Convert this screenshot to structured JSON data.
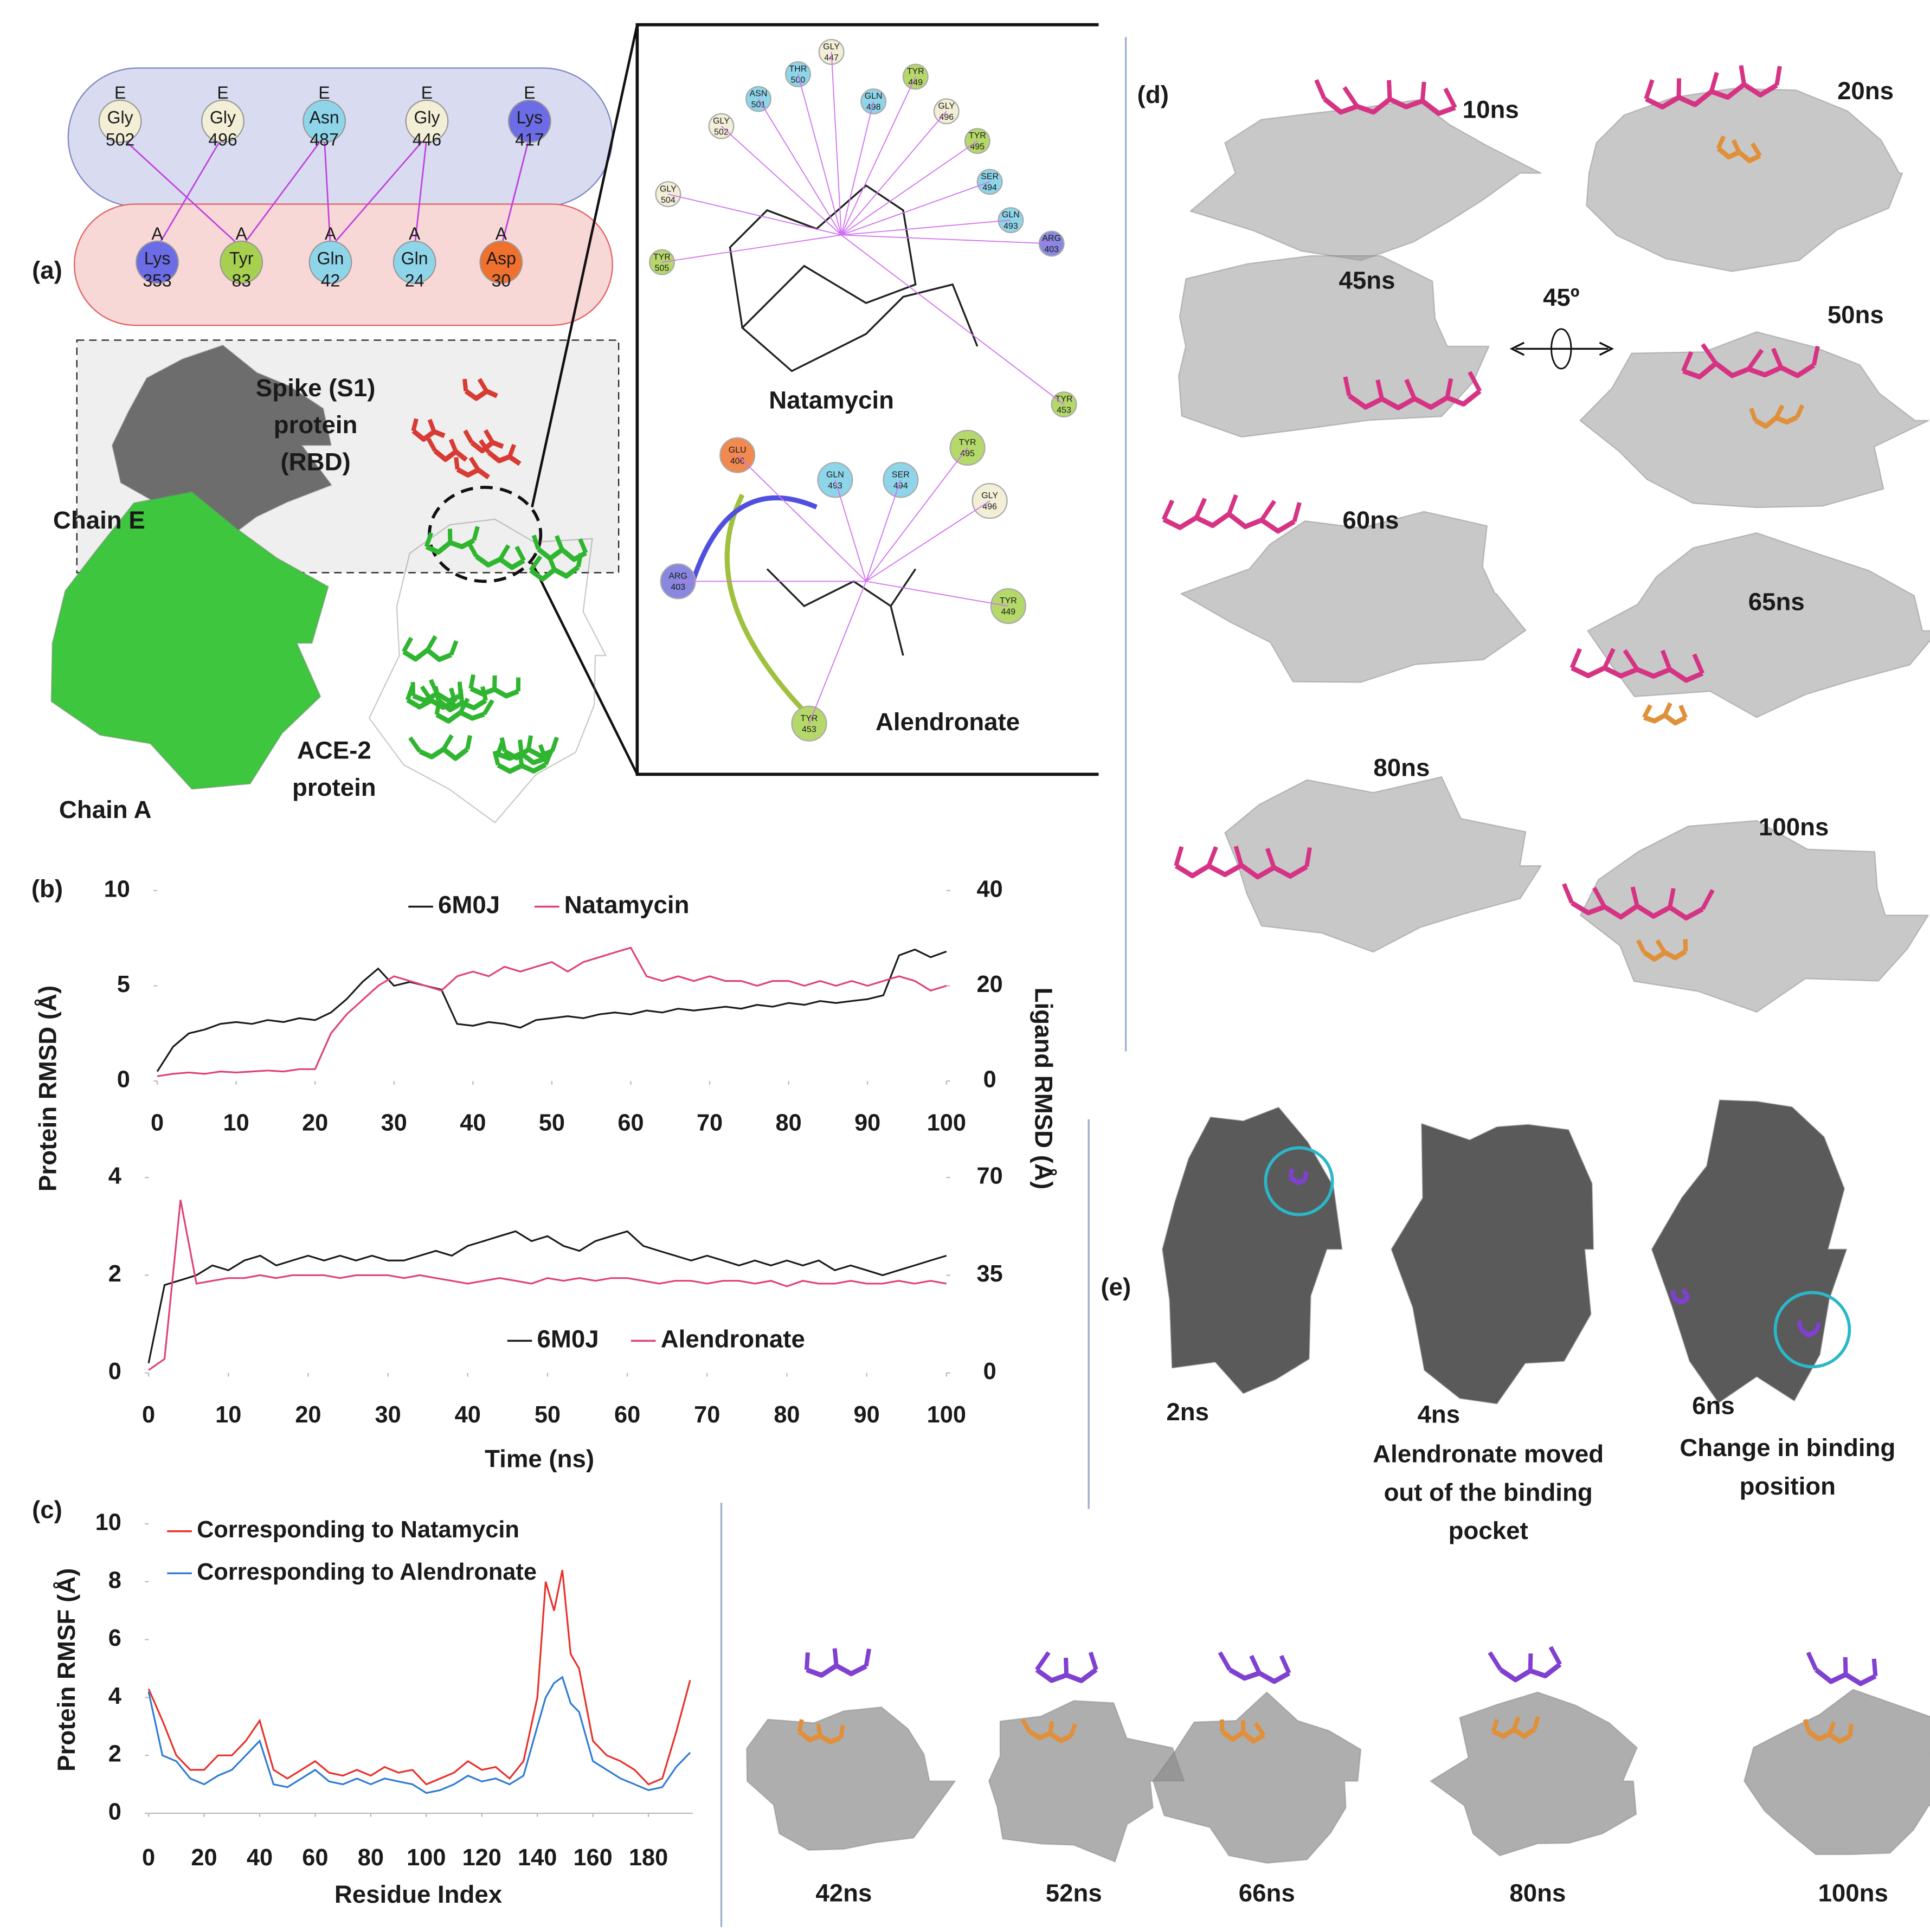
{
  "panel_labels": [
    "(a)",
    "(b)",
    "(c)",
    "(d)",
    "(e)"
  ],
  "interaction_map": {
    "chain_e": [
      {
        "chain": "E",
        "residue": "Gly",
        "number": "502"
      },
      {
        "chain": "E",
        "residue": "Gly",
        "number": "496"
      },
      {
        "chain": "E",
        "residue": "Asn",
        "number": "487"
      },
      {
        "chain": "E",
        "residue": "Gly",
        "number": "446"
      },
      {
        "chain": "E",
        "residue": "Lys",
        "number": "417"
      }
    ],
    "chain_a": [
      {
        "chain": "A",
        "residue": "Lys",
        "number": "353"
      },
      {
        "chain": "A",
        "residue": "Tyr",
        "number": "83"
      },
      {
        "chain": "A",
        "residue": "Gln",
        "number": "42"
      },
      {
        "chain": "A",
        "residue": "Gln",
        "number": "24"
      },
      {
        "chain": "A",
        "residue": "Asp",
        "number": "30"
      }
    ]
  },
  "structure_labels": {
    "spike": [
      "Spike (S1)",
      "protein",
      "(RBD)"
    ],
    "chain_e": "Chain E",
    "ace2": [
      "ACE-2",
      "protein"
    ],
    "chain_a": "Chain A"
  },
  "ligand_diagrams": {
    "natamycin": {
      "name": "Natamycin",
      "residues": [
        {
          "name": "GLY",
          "number": "447"
        },
        {
          "name": "THR",
          "number": "500"
        },
        {
          "name": "TYR",
          "number": "449"
        },
        {
          "name": "ASN",
          "number": "501"
        },
        {
          "name": "GLN",
          "number": "498"
        },
        {
          "name": "GLY",
          "number": "496"
        },
        {
          "name": "GLY",
          "number": "502"
        },
        {
          "name": "TYR",
          "number": "495"
        },
        {
          "name": "SER",
          "number": "494"
        },
        {
          "name": "GLY",
          "number": "504"
        },
        {
          "name": "GLN",
          "number": "493"
        },
        {
          "name": "ARG",
          "number": "403"
        },
        {
          "name": "TYR",
          "number": "505"
        },
        {
          "name": "TYR",
          "number": "453"
        }
      ]
    },
    "alendronate": {
      "name": "Alendronate",
      "residues": [
        {
          "name": "GLU",
          "number": "406"
        },
        {
          "name": "GLN",
          "number": "493"
        },
        {
          "name": "SER",
          "number": "494"
        },
        {
          "name": "TYR",
          "number": "495"
        },
        {
          "name": "GLY",
          "number": "496"
        },
        {
          "name": "ARG",
          "number": "403"
        },
        {
          "name": "TYR",
          "number": "449"
        },
        {
          "name": "TYR",
          "number": "453"
        }
      ]
    }
  },
  "panel_d": {
    "times": [
      "10ns",
      "20ns",
      "45ns",
      "50ns",
      "60ns",
      "65ns",
      "80ns",
      "100ns"
    ],
    "rotation": "45º"
  },
  "panel_e": {
    "times": [
      "2ns",
      "4ns",
      "6ns"
    ],
    "notes": [
      [
        "Alendronate moved",
        "out of the binding",
        "pocket"
      ],
      [
        "Change in binding",
        "position"
      ]
    ],
    "bottom_times": [
      "42ns",
      "52ns",
      "66ns",
      "80ns",
      "100ns"
    ]
  },
  "chart_data": [
    {
      "type": "line",
      "ylabel": "Protein RMSD (Å)",
      "y2label": "Ligand RMSD (Å)",
      "x": [
        0,
        2,
        4,
        6,
        8,
        10,
        12,
        14,
        16,
        18,
        20,
        22,
        24,
        26,
        28,
        30,
        32,
        34,
        36,
        38,
        40,
        42,
        44,
        46,
        48,
        50,
        52,
        54,
        56,
        58,
        60,
        62,
        64,
        66,
        68,
        70,
        72,
        74,
        76,
        78,
        80,
        82,
        84,
        86,
        88,
        90,
        92,
        94,
        96,
        98,
        100
      ],
      "xlim": [
        0,
        100
      ],
      "xticks": [
        0,
        10,
        20,
        30,
        40,
        50,
        60,
        70,
        80,
        90,
        100
      ],
      "ylim": [
        0,
        10
      ],
      "yticks": [
        0,
        5,
        10
      ],
      "y2lim": [
        0,
        40
      ],
      "y2ticks": [
        0,
        20,
        40
      ],
      "series": [
        {
          "name": "6M0J",
          "color": "#1a1a1a",
          "values": [
            0.5,
            1.8,
            2.5,
            2.7,
            3.0,
            3.1,
            3.0,
            3.2,
            3.1,
            3.3,
            3.2,
            3.6,
            4.3,
            5.2,
            5.9,
            5.0,
            5.2,
            5.0,
            4.8,
            3.0,
            2.9,
            3.1,
            3.0,
            2.8,
            3.2,
            3.3,
            3.4,
            3.3,
            3.5,
            3.6,
            3.5,
            3.7,
            3.6,
            3.8,
            3.7,
            3.8,
            3.9,
            3.8,
            4.0,
            3.9,
            4.1,
            4.0,
            4.2,
            4.1,
            4.2,
            4.3,
            4.5,
            6.6,
            6.9,
            6.5,
            6.8
          ]
        },
        {
          "name": "Natamycin",
          "color": "#e0407a",
          "axis": "y2",
          "values": [
            1,
            1.5,
            1.8,
            1.5,
            2,
            1.8,
            2,
            2.2,
            2,
            2.5,
            2.5,
            10,
            14,
            17,
            20,
            22,
            21,
            20,
            19,
            22,
            23,
            22,
            24,
            23,
            24,
            25,
            23,
            25,
            26,
            27,
            28,
            22,
            21,
            22,
            21,
            22,
            21,
            21,
            20,
            21,
            21,
            20,
            21,
            20,
            21,
            20,
            21,
            22,
            21,
            19,
            20
          ]
        }
      ]
    },
    {
      "type": "line",
      "xlabel": "Time (ns)",
      "x": [
        0,
        2,
        4,
        6,
        8,
        10,
        12,
        14,
        16,
        18,
        20,
        22,
        24,
        26,
        28,
        30,
        32,
        34,
        36,
        38,
        40,
        42,
        44,
        46,
        48,
        50,
        52,
        54,
        56,
        58,
        60,
        62,
        64,
        66,
        68,
        70,
        72,
        74,
        76,
        78,
        80,
        82,
        84,
        86,
        88,
        90,
        92,
        94,
        96,
        98,
        100
      ],
      "xlim": [
        0,
        100
      ],
      "xticks": [
        0,
        10,
        20,
        30,
        40,
        50,
        60,
        70,
        80,
        90,
        100
      ],
      "ylim": [
        0,
        4
      ],
      "yticks": [
        0,
        2,
        4
      ],
      "y2lim": [
        0,
        70
      ],
      "y2ticks": [
        0,
        35,
        70
      ],
      "series": [
        {
          "name": "6M0J",
          "color": "#1a1a1a",
          "values": [
            0.2,
            1.8,
            1.9,
            2.0,
            2.2,
            2.1,
            2.3,
            2.4,
            2.2,
            2.3,
            2.4,
            2.3,
            2.4,
            2.3,
            2.4,
            2.3,
            2.3,
            2.4,
            2.5,
            2.4,
            2.6,
            2.7,
            2.8,
            2.9,
            2.7,
            2.8,
            2.6,
            2.5,
            2.7,
            2.8,
            2.9,
            2.6,
            2.5,
            2.4,
            2.3,
            2.4,
            2.3,
            2.2,
            2.3,
            2.2,
            2.3,
            2.2,
            2.3,
            2.1,
            2.2,
            2.1,
            2.0,
            2.1,
            2.2,
            2.3,
            2.4
          ]
        },
        {
          "name": "Alendronate",
          "color": "#e0407a",
          "axis": "y2",
          "values": [
            1,
            5,
            62,
            32,
            33,
            34,
            34,
            35,
            34,
            35,
            35,
            35,
            34,
            35,
            35,
            35,
            34,
            35,
            34,
            33,
            32,
            33,
            34,
            33,
            32,
            34,
            33,
            34,
            33,
            34,
            34,
            33,
            32,
            33,
            33,
            32,
            33,
            33,
            32,
            33,
            31,
            33,
            32,
            32,
            33,
            32,
            32,
            33,
            32,
            33,
            32
          ]
        }
      ]
    },
    {
      "type": "line",
      "xlabel": "Residue Index",
      "ylabel": "Protein RMSF (Å)",
      "x": [
        0,
        5,
        10,
        15,
        20,
        25,
        30,
        35,
        40,
        45,
        50,
        55,
        60,
        65,
        70,
        75,
        80,
        85,
        90,
        95,
        100,
        105,
        110,
        115,
        120,
        125,
        130,
        135,
        140,
        143,
        146,
        149,
        152,
        155,
        160,
        165,
        170,
        175,
        180,
        185,
        190,
        195
      ],
      "xlim": [
        0,
        196
      ],
      "xticks": [
        0,
        20,
        40,
        60,
        80,
        100,
        120,
        140,
        160,
        180
      ],
      "ylim": [
        0,
        10
      ],
      "yticks": [
        0,
        2,
        4,
        6,
        8,
        10
      ],
      "series": [
        {
          "name": "Corresponding to Natamycin",
          "color": "#e8302a",
          "values": [
            4.3,
            3.2,
            2.0,
            1.5,
            1.5,
            2.0,
            2.0,
            2.5,
            3.2,
            1.5,
            1.2,
            1.5,
            1.8,
            1.4,
            1.3,
            1.5,
            1.3,
            1.6,
            1.4,
            1.5,
            1.0,
            1.2,
            1.4,
            1.8,
            1.5,
            1.6,
            1.2,
            1.8,
            4.0,
            8.0,
            7.0,
            8.4,
            5.5,
            5.0,
            2.5,
            2.0,
            1.8,
            1.5,
            1.0,
            1.2,
            2.8,
            4.6
          ]
        },
        {
          "name": "Corresponding to Alendronate",
          "color": "#2e7bd6",
          "values": [
            4.2,
            2.0,
            1.8,
            1.2,
            1.0,
            1.3,
            1.5,
            2.0,
            2.5,
            1.0,
            0.9,
            1.2,
            1.5,
            1.1,
            1.0,
            1.2,
            1.0,
            1.2,
            1.1,
            1.0,
            0.7,
            0.8,
            1.0,
            1.3,
            1.1,
            1.2,
            1.0,
            1.3,
            3.0,
            4.0,
            4.5,
            4.7,
            3.8,
            3.5,
            1.8,
            1.5,
            1.2,
            1.0,
            0.8,
            0.9,
            1.6,
            2.1
          ]
        }
      ]
    }
  ]
}
